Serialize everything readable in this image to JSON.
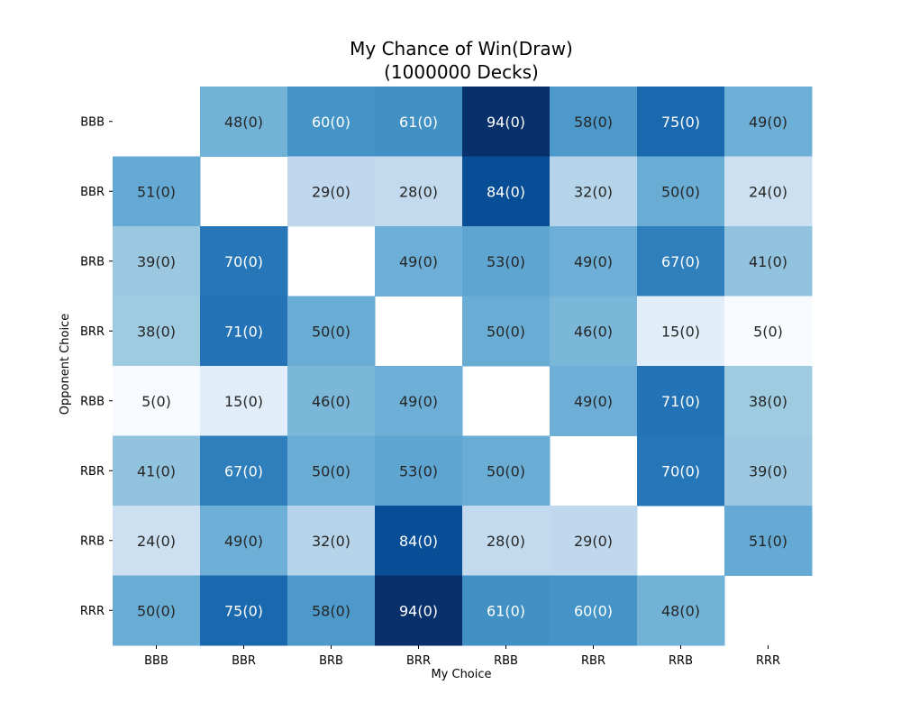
{
  "chart_data": {
    "type": "heatmap",
    "title": "My Chance of Win(Draw)",
    "subtitle": "(1000000 Decks)",
    "xlabel": "My Choice",
    "ylabel": "Opponent Choice",
    "x_categories": [
      "BBB",
      "BBR",
      "BRB",
      "BRR",
      "RBB",
      "RBR",
      "RRB",
      "RRR"
    ],
    "y_categories": [
      "BBB",
      "BBR",
      "BRB",
      "BRR",
      "RBB",
      "RBR",
      "RRB",
      "RRR"
    ],
    "colormap": "Blues",
    "value_range": [
      5,
      94
    ],
    "colorbar": false,
    "grid": false,
    "win": [
      [
        null,
        48,
        60,
        61,
        94,
        58,
        75,
        49
      ],
      [
        51,
        null,
        29,
        28,
        84,
        32,
        50,
        24
      ],
      [
        39,
        70,
        null,
        49,
        53,
        49,
        67,
        41
      ],
      [
        38,
        71,
        50,
        null,
        50,
        46,
        15,
        5
      ],
      [
        5,
        15,
        46,
        49,
        null,
        49,
        71,
        38
      ],
      [
        41,
        67,
        50,
        53,
        50,
        null,
        70,
        39
      ],
      [
        24,
        49,
        32,
        84,
        28,
        29,
        null,
        51
      ],
      [
        50,
        75,
        58,
        94,
        61,
        60,
        48,
        null
      ]
    ],
    "draw": [
      [
        null,
        0,
        0,
        0,
        0,
        0,
        0,
        0
      ],
      [
        0,
        null,
        0,
        0,
        0,
        0,
        0,
        0
      ],
      [
        0,
        0,
        null,
        0,
        0,
        0,
        0,
        0
      ],
      [
        0,
        0,
        0,
        null,
        0,
        0,
        0,
        0
      ],
      [
        0,
        0,
        0,
        0,
        null,
        0,
        0,
        0
      ],
      [
        0,
        0,
        0,
        0,
        0,
        null,
        0,
        0
      ],
      [
        0,
        0,
        0,
        0,
        0,
        0,
        null,
        0
      ],
      [
        0,
        0,
        0,
        0,
        0,
        0,
        0,
        null
      ]
    ],
    "cell_labels": [
      [
        "",
        "48(0)",
        "60(0)",
        "61(0)",
        "94(0)",
        "58(0)",
        "75(0)",
        "49(0)"
      ],
      [
        "51(0)",
        "",
        "29(0)",
        "28(0)",
        "84(0)",
        "32(0)",
        "50(0)",
        "24(0)"
      ],
      [
        "39(0)",
        "70(0)",
        "",
        "49(0)",
        "53(0)",
        "49(0)",
        "67(0)",
        "41(0)"
      ],
      [
        "38(0)",
        "71(0)",
        "50(0)",
        "",
        "50(0)",
        "46(0)",
        "15(0)",
        "5(0)"
      ],
      [
        "5(0)",
        "15(0)",
        "46(0)",
        "49(0)",
        "",
        "49(0)",
        "71(0)",
        "38(0)"
      ],
      [
        "41(0)",
        "67(0)",
        "50(0)",
        "53(0)",
        "50(0)",
        "",
        "70(0)",
        "39(0)"
      ],
      [
        "24(0)",
        "49(0)",
        "32(0)",
        "84(0)",
        "28(0)",
        "29(0)",
        "",
        "51(0)"
      ],
      [
        "50(0)",
        "75(0)",
        "58(0)",
        "94(0)",
        "61(0)",
        "60(0)",
        "48(0)",
        ""
      ]
    ]
  }
}
